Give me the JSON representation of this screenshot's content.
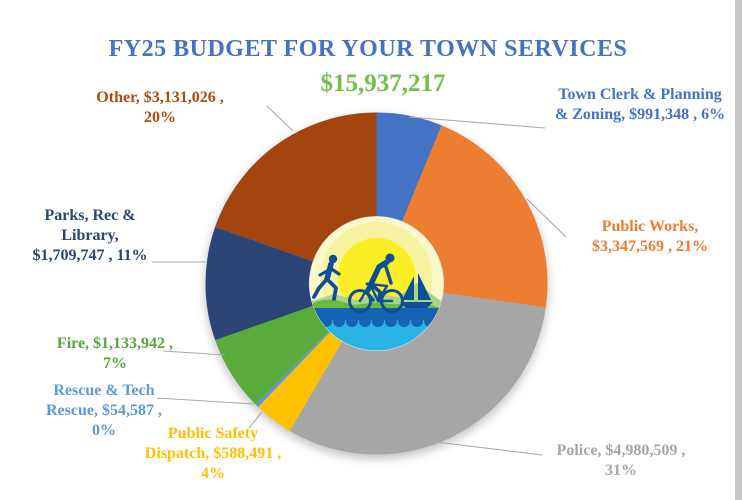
{
  "title": {
    "text": "FY25 BUDGET FOR YOUR TOWN SERVICES",
    "color": "#4472C4"
  },
  "subtitle": {
    "text": "$15,937,217",
    "color": "#72BF4B"
  },
  "chart_data": {
    "type": "pie",
    "donut": true,
    "title": "FY25 BUDGET FOR YOUR TOWN SERVICES",
    "total_label": "$15,937,217",
    "total_value": 15937217,
    "start_angle": "12 o'clock",
    "direction": "clockwise",
    "legend_position": "callout labels around pie",
    "center_graphic": "town logo: runner, cyclist and sailboat over sun, hills and lake",
    "series": [
      {
        "key": "town_clerk",
        "name": "Town Clerk & Planning & Zoning",
        "value": 991348,
        "percent": "6%",
        "color": "#4472C4"
      },
      {
        "key": "public_works",
        "name": "Public Works",
        "value": 3347569,
        "percent": "21%",
        "color": "#ED7D31"
      },
      {
        "key": "police",
        "name": "Police",
        "value": 4980509,
        "percent": "31%",
        "color": "#A6A6A6"
      },
      {
        "key": "dispatch",
        "name": "Public Safety Dispatch",
        "value": 588491,
        "percent": "4%",
        "color": "#FFC000"
      },
      {
        "key": "rescue",
        "name": "Rescue & Tech Rescue",
        "value": 54587,
        "percent": "0%",
        "color": "#5B9BD5"
      },
      {
        "key": "fire",
        "name": "Fire",
        "value": 1133942,
        "percent": "7%",
        "color": "#5AAA3C"
      },
      {
        "key": "parks",
        "name": "Parks, Rec & Library",
        "value": 1709747,
        "percent": "11%",
        "color": "#2B4577"
      },
      {
        "key": "other",
        "name": "Other",
        "value": 3131026,
        "percent": "20%",
        "color": "#A3450E"
      }
    ]
  },
  "labels": {
    "other": {
      "lines": [
        "Other, $3,131,026 ,",
        "20%"
      ],
      "color": "#AE4B10"
    },
    "town_clerk": {
      "lines": [
        "Town Clerk & Planning",
        "& Zoning, $991,348 , 6%"
      ],
      "color": "#4472C4"
    },
    "public_works": {
      "lines": [
        "Public Works,",
        "$3,347,569 , 21%"
      ],
      "color": "#ED7D31"
    },
    "police": {
      "lines": [
        "Police, $4,980,509 ,",
        "31%"
      ],
      "color": "#A6A6A6"
    },
    "dispatch": {
      "lines": [
        "Public Safety",
        "Dispatch, $588,491 ,",
        "4%"
      ],
      "color": "#FFC000"
    },
    "rescue": {
      "lines": [
        "Rescue & Tech",
        "Rescue, $54,587 ,",
        "0%"
      ],
      "color": "#5B9BD5"
    },
    "fire": {
      "lines": [
        "Fire, $1,133,942 ,",
        "7%"
      ],
      "color": "#55A63B"
    },
    "parks": {
      "lines": [
        "Parks, Rec &",
        "Library,",
        "$1,709,747 , 11%"
      ],
      "color": "#2B4577"
    }
  }
}
